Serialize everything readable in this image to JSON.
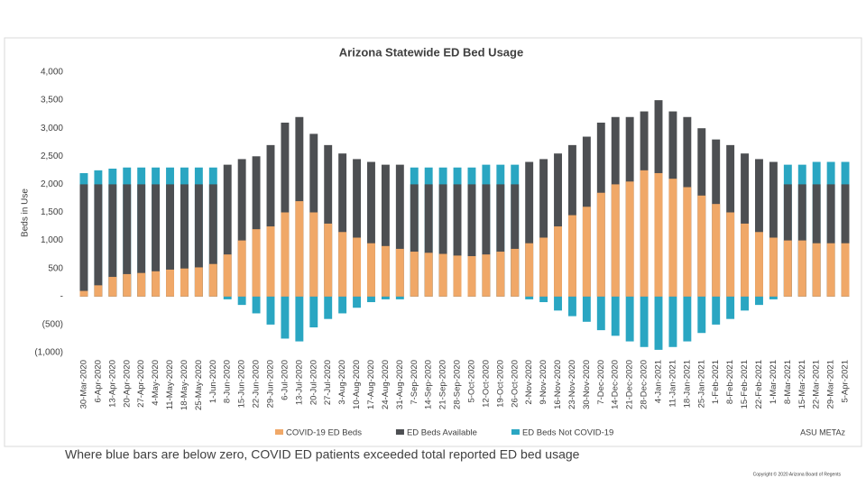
{
  "chart_data": {
    "type": "bar",
    "title": "Arizona Statewide ED Bed Usage",
    "y_label": "Beds in Use",
    "categories": [
      "30-Mar-2020",
      "6-Apr-2020",
      "13-Apr-2020",
      "20-Apr-2020",
      "27-Apr-2020",
      "4-May-2020",
      "11-May-2020",
      "18-May-2020",
      "25-May-2020",
      "1-Jun-2020",
      "8-Jun-2020",
      "15-Jun-2020",
      "22-Jun-2020",
      "29-Jun-2020",
      "6-Jul-2020",
      "13-Jul-2020",
      "20-Jul-2020",
      "27-Jul-2020",
      "3-Aug-2020",
      "10-Aug-2020",
      "17-Aug-2020",
      "24-Aug-2020",
      "31-Aug-2020",
      "7-Sep-2020",
      "14-Sep-2020",
      "21-Sep-2020",
      "28-Sep-2020",
      "5-Oct-2020",
      "12-Oct-2020",
      "19-Oct-2020",
      "26-Oct-2020",
      "2-Nov-2020",
      "9-Nov-2020",
      "16-Nov-2020",
      "23-Nov-2020",
      "30-Nov-2020",
      "7-Dec-2020",
      "14-Dec-2020",
      "21-Dec-2020",
      "28-Dec-2020",
      "4-Jan-2021",
      "11-Jan-2021",
      "18-Jan-2021",
      "25-Jan-2021",
      "1-Feb-2021",
      "8-Feb-2021",
      "15-Feb-2021",
      "22-Feb-2021",
      "1-Mar-2021",
      "8-Mar-2021",
      "15-Mar-2021",
      "22-Mar-2021",
      "29-Mar-2021",
      "5-Apr-2021"
    ],
    "series": [
      {
        "name": "ED Beds Not COVID-19",
        "color": "#2aa6c2",
        "values": [
          2200,
          2250,
          2280,
          2300,
          2300,
          2300,
          2300,
          2300,
          2300,
          2300,
          -50,
          -150,
          -300,
          -500,
          -750,
          -800,
          -550,
          -400,
          -300,
          -200,
          -100,
          -50,
          -50,
          2300,
          2300,
          2300,
          2300,
          2300,
          2350,
          2350,
          2350,
          -50,
          -100,
          -250,
          -350,
          -450,
          -600,
          -700,
          -800,
          -900,
          -950,
          -900,
          -800,
          -650,
          -500,
          -400,
          -250,
          -150,
          -50,
          2350,
          2350,
          2400,
          2400,
          2400
        ]
      },
      {
        "name": "ED Beds Available",
        "color": "#4d4f52",
        "values": [
          2000,
          2000,
          2000,
          2000,
          2000,
          2000,
          2000,
          2000,
          2000,
          2000,
          2350,
          2450,
          2500,
          2700,
          3100,
          3200,
          2900,
          2700,
          2550,
          2450,
          2400,
          2350,
          2350,
          2000,
          2000,
          2000,
          2000,
          2000,
          2000,
          2000,
          2000,
          2400,
          2450,
          2550,
          2700,
          2850,
          3100,
          3200,
          3200,
          3300,
          3500,
          3300,
          3200,
          3000,
          2800,
          2700,
          2550,
          2450,
          2400,
          2000,
          2000,
          2000,
          2000,
          2000
        ]
      },
      {
        "name": "COVID-19 ED Beds",
        "color": "#f0a868",
        "values": [
          100,
          200,
          350,
          400,
          420,
          450,
          480,
          500,
          520,
          580,
          750,
          1000,
          1200,
          1250,
          1500,
          1700,
          1500,
          1300,
          1150,
          1050,
          950,
          900,
          850,
          800,
          780,
          760,
          730,
          720,
          750,
          800,
          850,
          950,
          1050,
          1250,
          1450,
          1600,
          1850,
          2000,
          2050,
          2250,
          2200,
          2100,
          1950,
          1800,
          1650,
          1500,
          1300,
          1150,
          1050,
          1000,
          1000,
          950,
          950,
          950
        ]
      }
    ],
    "legend_order": [
      2,
      1,
      0
    ],
    "ylim": [
      -1000,
      4000
    ],
    "yticks": [
      {
        "value": -1000,
        "label": "(1,000)"
      },
      {
        "value": -500,
        "label": "(500)"
      },
      {
        "value": 0,
        "label": "-"
      },
      500,
      {
        "value": 1000,
        "label": "1,000"
      },
      {
        "value": 1500,
        "label": "1,500"
      },
      {
        "value": 2000,
        "label": "2,000"
      },
      {
        "value": 2500,
        "label": "2,500"
      },
      {
        "value": 3000,
        "label": "3,000"
      },
      {
        "value": 3500,
        "label": "3,500"
      },
      {
        "value": 4000,
        "label": "4,000"
      }
    ],
    "source": "ASU METAz"
  },
  "caption": "Where blue bars are below zero, COVID ED patients exceeded total reported ED bed usage",
  "footer": "Copyright © 2020 Arizona Board of Regents"
}
